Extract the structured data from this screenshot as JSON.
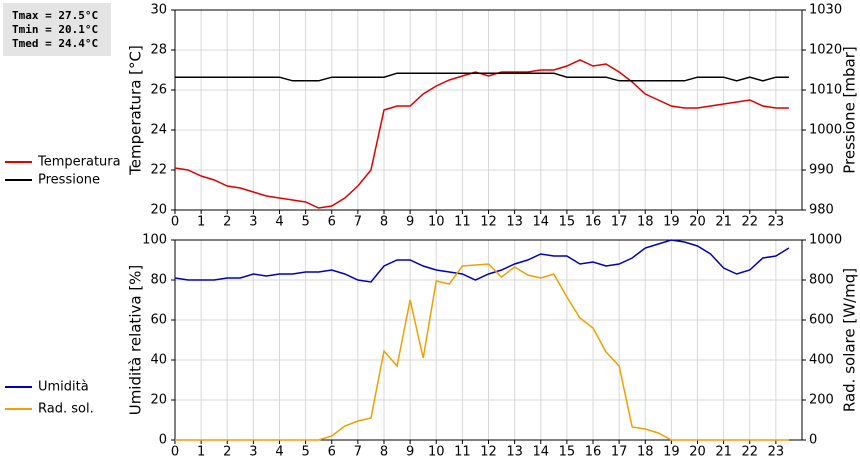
{
  "chart_data": [
    {
      "type": "line",
      "annotations": [
        "Tmax = 27.5°C",
        "Tmin = 20.1°C",
        "Tmed = 24.4°C"
      ],
      "ylabel": "Temperatura [°C]",
      "y2label": "Pressione [mbar]",
      "x": [
        0,
        0.5,
        1,
        1.5,
        2,
        2.5,
        3,
        3.5,
        4,
        4.5,
        5,
        5.5,
        6,
        6.5,
        7,
        7.5,
        8,
        8.5,
        9,
        9.5,
        10,
        10.5,
        11,
        11.5,
        12,
        12.5,
        13,
        13.5,
        14,
        14.5,
        15,
        15.5,
        16,
        16.5,
        17,
        17.5,
        18,
        18.5,
        19,
        19.5,
        20,
        20.5,
        21,
        21.5,
        22,
        22.5,
        23,
        23.5
      ],
      "xlim": [
        0,
        24
      ],
      "xticks": [
        0,
        1,
        2,
        3,
        4,
        5,
        6,
        7,
        8,
        9,
        10,
        11,
        12,
        13,
        14,
        15,
        16,
        17,
        18,
        19,
        20,
        21,
        22,
        23
      ],
      "ylim": [
        20,
        30
      ],
      "yticks": [
        20,
        22,
        24,
        26,
        28,
        30
      ],
      "y2lim": [
        980,
        1030
      ],
      "y2ticks": [
        980,
        990,
        1000,
        1010,
        1020,
        1030
      ],
      "grid": true,
      "legend": "left",
      "series": [
        {
          "name": "Temperatura",
          "color": "#e00000",
          "values": [
            22.1,
            22.0,
            21.7,
            21.5,
            21.2,
            21.1,
            20.9,
            20.7,
            20.6,
            20.5,
            20.4,
            20.1,
            20.2,
            20.6,
            21.2,
            22.0,
            25.0,
            25.2,
            25.2,
            25.8,
            26.2,
            26.5,
            26.7,
            26.9,
            26.7,
            26.9,
            26.9,
            26.9,
            27.0,
            27.0,
            27.2,
            27.5,
            27.2,
            27.3,
            26.9,
            26.4,
            25.8,
            25.5,
            25.2,
            25.1,
            25.1,
            25.2,
            25.3,
            25.4,
            25.5,
            25.2,
            25.1,
            25.1
          ]
        },
        {
          "name": "Pressione",
          "color": "#000000",
          "axis": "y2",
          "values": [
            1013.2,
            1013.2,
            1013.2,
            1013.2,
            1013.2,
            1013.2,
            1013.2,
            1013.2,
            1013.2,
            1012.3,
            1012.3,
            1012.3,
            1013.2,
            1013.2,
            1013.2,
            1013.2,
            1013.2,
            1014.2,
            1014.2,
            1014.2,
            1014.2,
            1014.2,
            1014.2,
            1014.2,
            1014.2,
            1014.2,
            1014.2,
            1014.2,
            1014.2,
            1014.2,
            1013.2,
            1013.2,
            1013.2,
            1013.2,
            1012.3,
            1012.3,
            1012.3,
            1012.3,
            1012.3,
            1012.3,
            1013.2,
            1013.2,
            1013.2,
            1012.3,
            1013.2,
            1012.3,
            1013.2,
            1013.2
          ]
        }
      ]
    },
    {
      "type": "line",
      "ylabel": "Umidità relativa [%]",
      "y2label": "Rad. solare [W/mq]",
      "x": [
        0,
        0.5,
        1,
        1.5,
        2,
        2.5,
        3,
        3.5,
        4,
        4.5,
        5,
        5.5,
        6,
        6.5,
        7,
        7.5,
        8,
        8.5,
        9,
        9.5,
        10,
        10.5,
        11,
        11.5,
        12,
        12.5,
        13,
        13.5,
        14,
        14.5,
        15,
        15.5,
        16,
        16.5,
        17,
        17.5,
        18,
        18.5,
        19,
        19.5,
        20,
        20.5,
        21,
        21.5,
        22,
        22.5,
        23,
        23.5
      ],
      "xlim": [
        0,
        24
      ],
      "xticks": [
        0,
        1,
        2,
        3,
        4,
        5,
        6,
        7,
        8,
        9,
        10,
        11,
        12,
        13,
        14,
        15,
        16,
        17,
        18,
        19,
        20,
        21,
        22,
        23
      ],
      "ylim": [
        0,
        100
      ],
      "yticks": [
        0,
        20,
        40,
        60,
        80,
        100
      ],
      "y2lim": [
        0,
        1000
      ],
      "y2ticks": [
        0,
        200,
        400,
        600,
        800,
        1000
      ],
      "grid": true,
      "legend": "left",
      "series": [
        {
          "name": "Umidità",
          "color": "#0000c0",
          "values": [
            81,
            80,
            80,
            80,
            81,
            81,
            83,
            82,
            83,
            83,
            84,
            84,
            85,
            83,
            80,
            79,
            87,
            90,
            90,
            87,
            85,
            84,
            83,
            80,
            83,
            85,
            88,
            90,
            93,
            92,
            92,
            88,
            89,
            87,
            88,
            91,
            96,
            98,
            100,
            99,
            97,
            93,
            86,
            83,
            85,
            91,
            92,
            96
          ]
        },
        {
          "name": "Rad. sol.",
          "color": "#f0a000",
          "axis": "y2",
          "values": [
            0,
            0,
            0,
            0,
            0,
            0,
            0,
            0,
            0,
            0,
            0,
            0,
            20,
            70,
            95,
            110,
            445,
            370,
            700,
            410,
            795,
            780,
            870,
            875,
            880,
            815,
            865,
            825,
            810,
            830,
            715,
            610,
            560,
            440,
            370,
            65,
            55,
            35,
            0,
            0,
            0,
            0,
            0,
            0,
            0,
            0,
            0,
            0
          ]
        }
      ]
    }
  ]
}
